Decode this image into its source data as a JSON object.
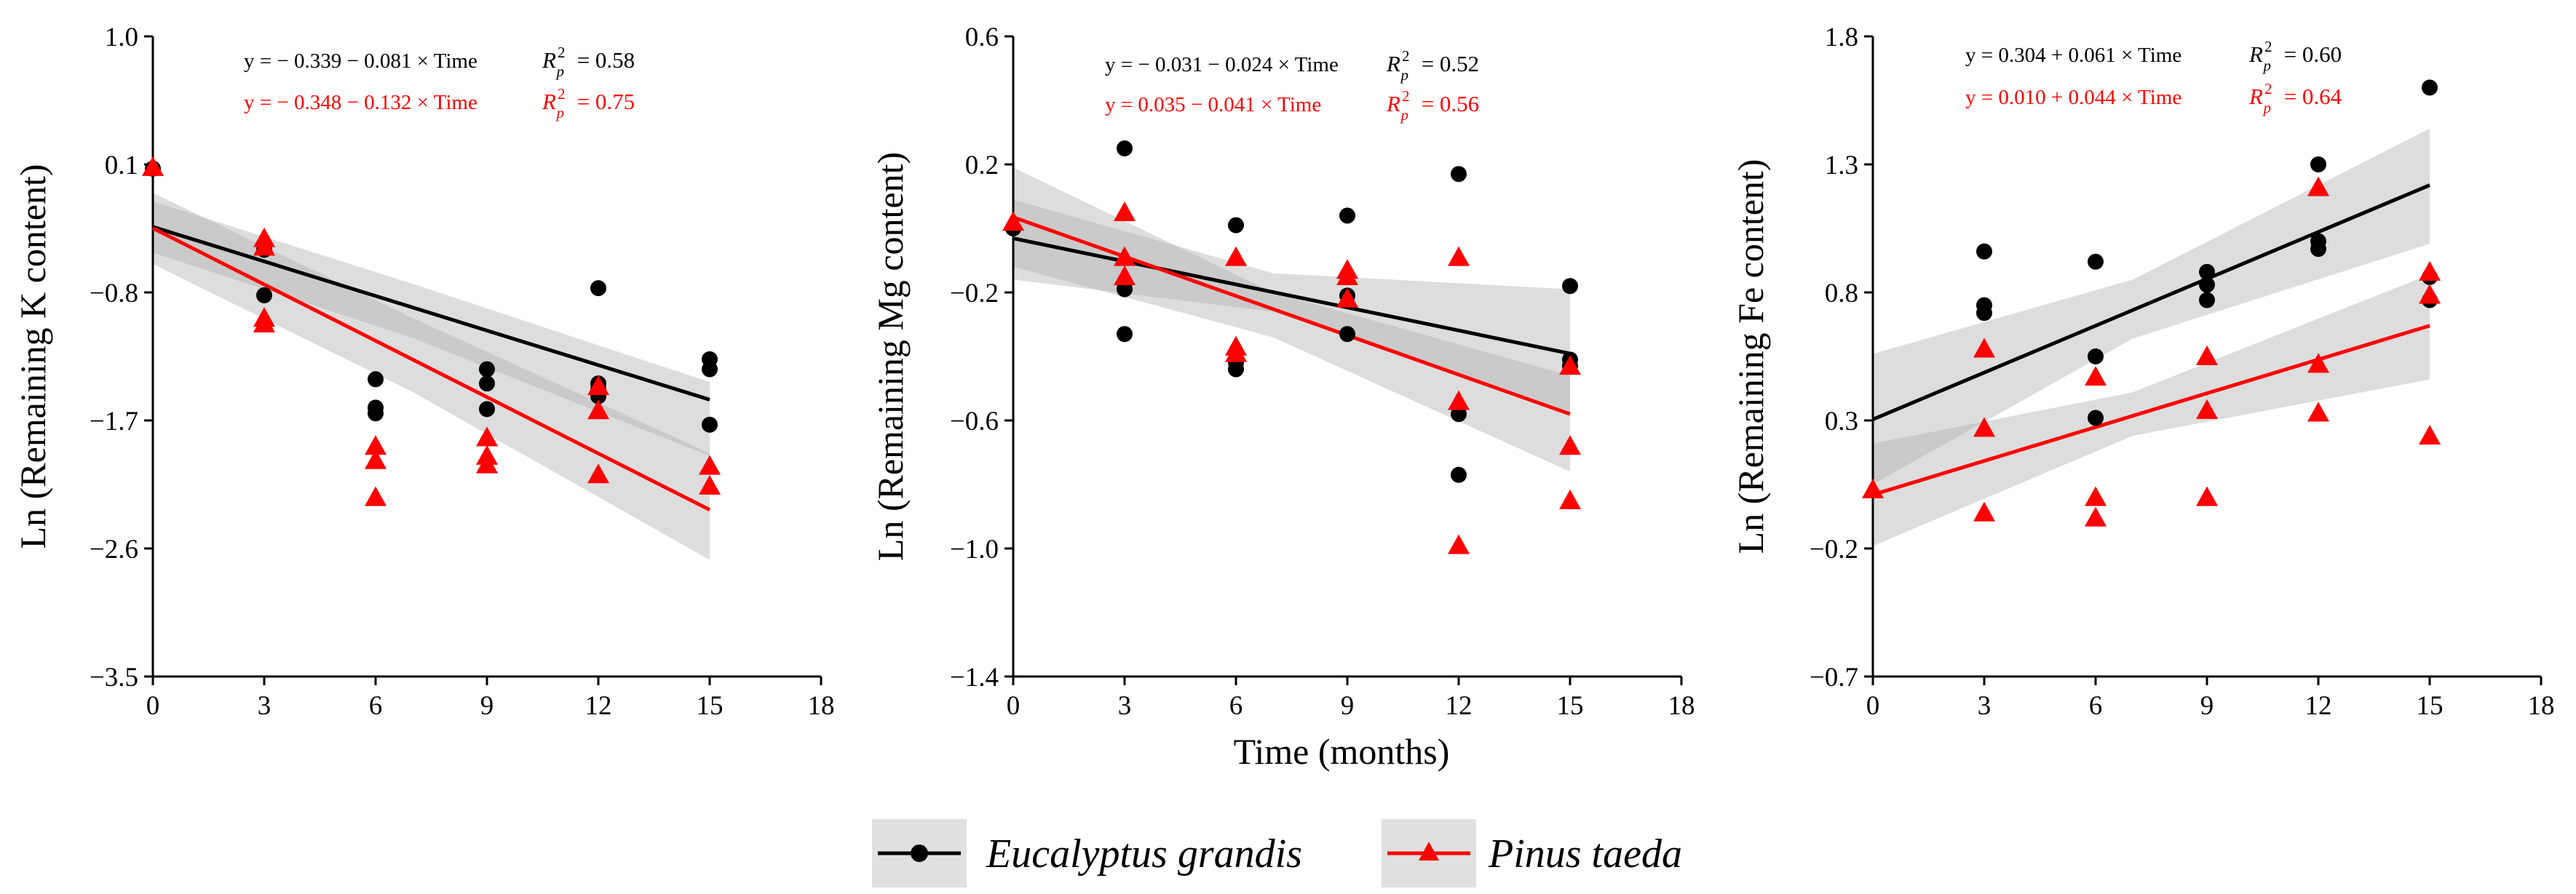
{
  "colors": {
    "eucalyptus": "#000000",
    "pinus": "#ff0000",
    "band": "#b3b3b3"
  },
  "legend": {
    "items": [
      {
        "label": "Eucalyptus grandis",
        "color": "#000000",
        "marker": "circle"
      },
      {
        "label": "Pinus taeda",
        "color": "#ff0000",
        "marker": "triangle"
      }
    ]
  },
  "xlabel": "Time (months)",
  "chart_data": [
    {
      "type": "scatter",
      "ylabel": "Ln (Remaining K content)",
      "xlim": [
        0,
        18
      ],
      "xticks": [
        0,
        3,
        6,
        9,
        12,
        15,
        18
      ],
      "ylim": [
        -3.5,
        1.0
      ],
      "yticks": [
        1.0,
        0.1,
        -0.8,
        -1.7,
        -2.6,
        -3.5
      ],
      "ytick_labels": [
        "1.0",
        "0.1",
        "−0.8",
        "−1.7",
        "−2.6",
        "−3.5"
      ],
      "series": [
        {
          "name": "Eucalyptus grandis",
          "marker": "circle",
          "color": "#000000",
          "points": [
            [
              0,
              0.07
            ],
            [
              3,
              -0.5
            ],
            [
              3,
              -0.82
            ],
            [
              6,
              -1.41
            ],
            [
              6,
              -1.61
            ],
            [
              6,
              -1.65
            ],
            [
              9,
              -1.34
            ],
            [
              9,
              -1.44
            ],
            [
              9,
              -1.62
            ],
            [
              12,
              -0.77
            ],
            [
              12,
              -1.44
            ],
            [
              12,
              -1.48
            ],
            [
              12,
              -1.53
            ],
            [
              15,
              -1.27
            ],
            [
              15,
              -1.34
            ],
            [
              15,
              -1.73
            ]
          ],
          "fit": {
            "intercept": -0.339,
            "slope": -0.081,
            "x": [
              0,
              15
            ]
          },
          "band": [
            [
              0,
              -0.16,
              -0.52
            ],
            [
              7,
              -0.74,
              -1.12
            ],
            [
              15,
              -1.43,
              -1.95
            ]
          ],
          "equation": "y = − 0.339 − 0.081 × Time",
          "r2": "= 0.58"
        },
        {
          "name": "Pinus taeda",
          "marker": "triangle",
          "color": "#ff0000",
          "points": [
            [
              0,
              0.08
            ],
            [
              3,
              -0.42
            ],
            [
              3,
              -0.48
            ],
            [
              3,
              -0.98
            ],
            [
              3,
              -1.02
            ],
            [
              6,
              -1.88
            ],
            [
              6,
              -1.98
            ],
            [
              6,
              -2.24
            ],
            [
              9,
              -1.82
            ],
            [
              9,
              -1.95
            ],
            [
              9,
              -2.01
            ],
            [
              12,
              -1.46
            ],
            [
              12,
              -1.63
            ],
            [
              12,
              -2.08
            ],
            [
              15,
              -2.02
            ],
            [
              15,
              -2.16
            ]
          ],
          "fit": {
            "intercept": -0.348,
            "slope": -0.132,
            "x": [
              0,
              15
            ]
          },
          "band": [
            [
              0,
              -0.1,
              -0.6
            ],
            [
              7,
              -0.98,
              -1.5
            ],
            [
              15,
              -1.93,
              -2.68
            ]
          ],
          "equation": "y = − 0.348 − 0.132 × Time",
          "r2": "= 0.75"
        }
      ]
    },
    {
      "type": "scatter",
      "ylabel": "Ln (Remaining Mg content)",
      "xlim": [
        0,
        18
      ],
      "xticks": [
        0,
        3,
        6,
        9,
        12,
        15,
        18
      ],
      "ylim": [
        -1.4,
        0.6
      ],
      "yticks": [
        0.6,
        0.2,
        -0.2,
        -0.6,
        -1.0,
        -1.4
      ],
      "ytick_labels": [
        "0.6",
        "0.2",
        "−0.2",
        "−0.6",
        "−1.0",
        "−1.4"
      ],
      "series": [
        {
          "name": "Eucalyptus grandis",
          "marker": "circle",
          "color": "#000000",
          "points": [
            [
              0,
              0.0
            ],
            [
              3,
              0.25
            ],
            [
              3,
              -0.17
            ],
            [
              3,
              -0.19
            ],
            [
              3,
              -0.33
            ],
            [
              6,
              0.01
            ],
            [
              6,
              -0.42
            ],
            [
              6,
              -0.44
            ],
            [
              9,
              0.04
            ],
            [
              9,
              -0.21
            ],
            [
              9,
              -0.33
            ],
            [
              12,
              0.17
            ],
            [
              12,
              -0.58
            ],
            [
              12,
              -0.77
            ],
            [
              15,
              -0.18
            ],
            [
              15,
              -0.41
            ],
            [
              15,
              -0.43
            ]
          ],
          "fit": {
            "intercept": -0.031,
            "slope": -0.024,
            "x": [
              0,
              15
            ]
          },
          "band": [
            [
              0,
              0.09,
              -0.16
            ],
            [
              7,
              -0.14,
              -0.26
            ],
            [
              15,
              -0.19,
              -0.58
            ]
          ],
          "equation": "y = − 0.031 − 0.024 × Time",
          "r2": "= 0.52"
        },
        {
          "name": "Pinus taeda",
          "marker": "triangle",
          "color": "#ff0000",
          "points": [
            [
              0,
              0.02
            ],
            [
              3,
              0.05
            ],
            [
              3,
              -0.09
            ],
            [
              3,
              -0.15
            ],
            [
              6,
              -0.09
            ],
            [
              6,
              -0.37
            ],
            [
              6,
              -0.39
            ],
            [
              9,
              -0.13
            ],
            [
              9,
              -0.15
            ],
            [
              9,
              -0.22
            ],
            [
              12,
              -0.09
            ],
            [
              12,
              -0.54
            ],
            [
              12,
              -0.99
            ],
            [
              15,
              -0.68
            ],
            [
              15,
              -0.85
            ],
            [
              15,
              -0.43
            ]
          ],
          "fit": {
            "intercept": 0.035,
            "slope": -0.041,
            "x": [
              0,
              15
            ]
          },
          "band": [
            [
              0,
              0.19,
              -0.12
            ],
            [
              7,
              -0.2,
              -0.34
            ],
            [
              15,
              -0.46,
              -0.76
            ]
          ],
          "equation": "y = 0.035 − 0.041 × Time",
          "r2": "= 0.56"
        }
      ]
    },
    {
      "type": "scatter",
      "ylabel": "Ln (Remaining Fe content)",
      "xlim": [
        0,
        18
      ],
      "xticks": [
        0,
        3,
        6,
        9,
        12,
        15,
        18
      ],
      "ylim": [
        -0.7,
        1.8
      ],
      "yticks": [
        1.8,
        1.3,
        0.8,
        0.3,
        -0.2,
        -0.7
      ],
      "ytick_labels": [
        "1.8",
        "1.3",
        "0.8",
        "0.3",
        "−0.2",
        "−0.7"
      ],
      "series": [
        {
          "name": "Eucalyptus grandis",
          "marker": "circle",
          "color": "#000000",
          "points": [
            [
              3,
              0.72
            ],
            [
              3,
              0.75
            ],
            [
              3,
              0.96
            ],
            [
              6,
              0.31
            ],
            [
              6,
              0.55
            ],
            [
              6,
              0.92
            ],
            [
              9,
              0.77
            ],
            [
              9,
              0.83
            ],
            [
              9,
              0.88
            ],
            [
              12,
              0.97
            ],
            [
              12,
              1.0
            ],
            [
              12,
              1.3
            ],
            [
              15,
              0.77
            ],
            [
              15,
              0.86
            ],
            [
              15,
              1.6
            ]
          ],
          "fit": {
            "intercept": 0.304,
            "slope": 0.061,
            "x": [
              0,
              15
            ]
          },
          "band": [
            [
              0,
              0.56,
              0.05
            ],
            [
              7,
              0.85,
              0.62
            ],
            [
              15,
              1.44,
              0.99
            ]
          ],
          "equation": "y = 0.304 + 0.061 × Time",
          "r2": "= 0.60"
        },
        {
          "name": "Pinus taeda",
          "marker": "triangle",
          "color": "#ff0000",
          "points": [
            [
              0,
              0.03
            ],
            [
              3,
              0.27
            ],
            [
              3,
              -0.06
            ],
            [
              3,
              0.58
            ],
            [
              6,
              0.47
            ],
            [
              6,
              0.0
            ],
            [
              6,
              -0.08
            ],
            [
              9,
              0.55
            ],
            [
              9,
              0.34
            ],
            [
              9,
              0.0
            ],
            [
              12,
              1.21
            ],
            [
              12,
              0.52
            ],
            [
              12,
              0.33
            ],
            [
              15,
              0.88
            ],
            [
              15,
              0.79
            ],
            [
              15,
              0.24
            ]
          ],
          "fit": {
            "intercept": 0.01,
            "slope": 0.044,
            "x": [
              0,
              15
            ]
          },
          "band": [
            [
              0,
              0.21,
              -0.19
            ],
            [
              7,
              0.41,
              0.24
            ],
            [
              15,
              0.87,
              0.46
            ]
          ],
          "equation": "y = 0.010 + 0.044 × Time",
          "r2": "= 0.64"
        }
      ]
    }
  ]
}
